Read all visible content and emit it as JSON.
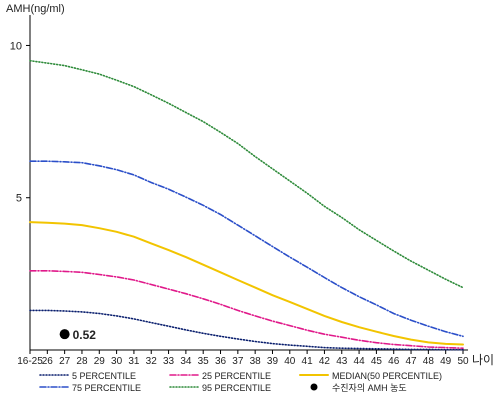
{
  "chart_data": {
    "type": "line",
    "ylabel": "AMH(ng/ml)",
    "xlabel": "나이",
    "ylim": [
      0,
      11
    ],
    "yticks": [
      5,
      10
    ],
    "categories": [
      "16-25",
      "26",
      "27",
      "28",
      "29",
      "30",
      "31",
      "32",
      "33",
      "34",
      "35",
      "36",
      "37",
      "38",
      "39",
      "40",
      "41",
      "42",
      "43",
      "44",
      "45",
      "46",
      "47",
      "48",
      "49",
      "50"
    ],
    "series": [
      {
        "name": "95 PERCENTILE",
        "color": "#2e8b3a",
        "dash": "1,2",
        "values": [
          9.5,
          9.42,
          9.34,
          9.2,
          9.06,
          8.86,
          8.65,
          8.38,
          8.1,
          7.8,
          7.5,
          7.15,
          6.78,
          6.35,
          5.95,
          5.55,
          5.15,
          4.72,
          4.35,
          3.95,
          3.6,
          3.25,
          2.92,
          2.62,
          2.32,
          2.05
        ]
      },
      {
        "name": "75 PERCENTILE",
        "color": "#2b4fc9",
        "dash": "6,2,1,2",
        "values": [
          6.2,
          6.2,
          6.18,
          6.15,
          6.05,
          5.92,
          5.75,
          5.5,
          5.28,
          5.02,
          4.75,
          4.45,
          4.1,
          3.75,
          3.4,
          3.05,
          2.72,
          2.38,
          2.05,
          1.75,
          1.48,
          1.2,
          0.98,
          0.78,
          0.6,
          0.45
        ]
      },
      {
        "name": "MEDIAN(50 PERCENTILE)",
        "color": "#f2c400",
        "dash": "",
        "values": [
          4.2,
          4.18,
          4.15,
          4.1,
          4.0,
          3.88,
          3.72,
          3.5,
          3.28,
          3.05,
          2.8,
          2.55,
          2.3,
          2.05,
          1.8,
          1.58,
          1.35,
          1.12,
          0.92,
          0.75,
          0.6,
          0.46,
          0.34,
          0.25,
          0.2,
          0.18
        ]
      },
      {
        "name": "25 PERCENTILE",
        "color": "#e0198a",
        "dash": "6,2,1,2",
        "values": [
          2.6,
          2.6,
          2.58,
          2.55,
          2.48,
          2.4,
          2.3,
          2.15,
          2.0,
          1.85,
          1.68,
          1.5,
          1.3,
          1.12,
          0.95,
          0.8,
          0.65,
          0.52,
          0.42,
          0.32,
          0.24,
          0.18,
          0.14,
          0.1,
          0.08,
          0.06
        ]
      },
      {
        "name": "5 PERCENTILE",
        "color": "#0a1f6e",
        "dash": "1,2",
        "values": [
          1.3,
          1.3,
          1.28,
          1.25,
          1.2,
          1.12,
          1.02,
          0.9,
          0.78,
          0.66,
          0.55,
          0.45,
          0.36,
          0.28,
          0.21,
          0.16,
          0.12,
          0.08,
          0.06,
          0.05,
          0.04,
          0.03,
          0.02,
          0.02,
          0.01,
          0.01
        ]
      }
    ],
    "annotations": [
      {
        "x": "27",
        "y": 0.52,
        "label": "0.52",
        "marker": "filled-circle",
        "color": "#000000"
      }
    ],
    "legend": {
      "placement": "bottom",
      "items": [
        {
          "label": "5 PERCENTILE",
          "color": "#0a1f6e",
          "style": "dotted"
        },
        {
          "label": "25 PERCENTILE",
          "color": "#e0198a",
          "style": "dashdot"
        },
        {
          "label": "MEDIAN(50 PERCENTILE)",
          "color": "#f2c400",
          "style": "solid"
        },
        {
          "label": "75 PERCENTILE",
          "color": "#2b4fc9",
          "style": "dashdot"
        },
        {
          "label": "95 PERCENTILE",
          "color": "#2e8b3a",
          "style": "dotted"
        },
        {
          "label": "수진자의 AMH 농도",
          "color": "#000000",
          "style": "marker"
        }
      ]
    },
    "grid": false
  }
}
